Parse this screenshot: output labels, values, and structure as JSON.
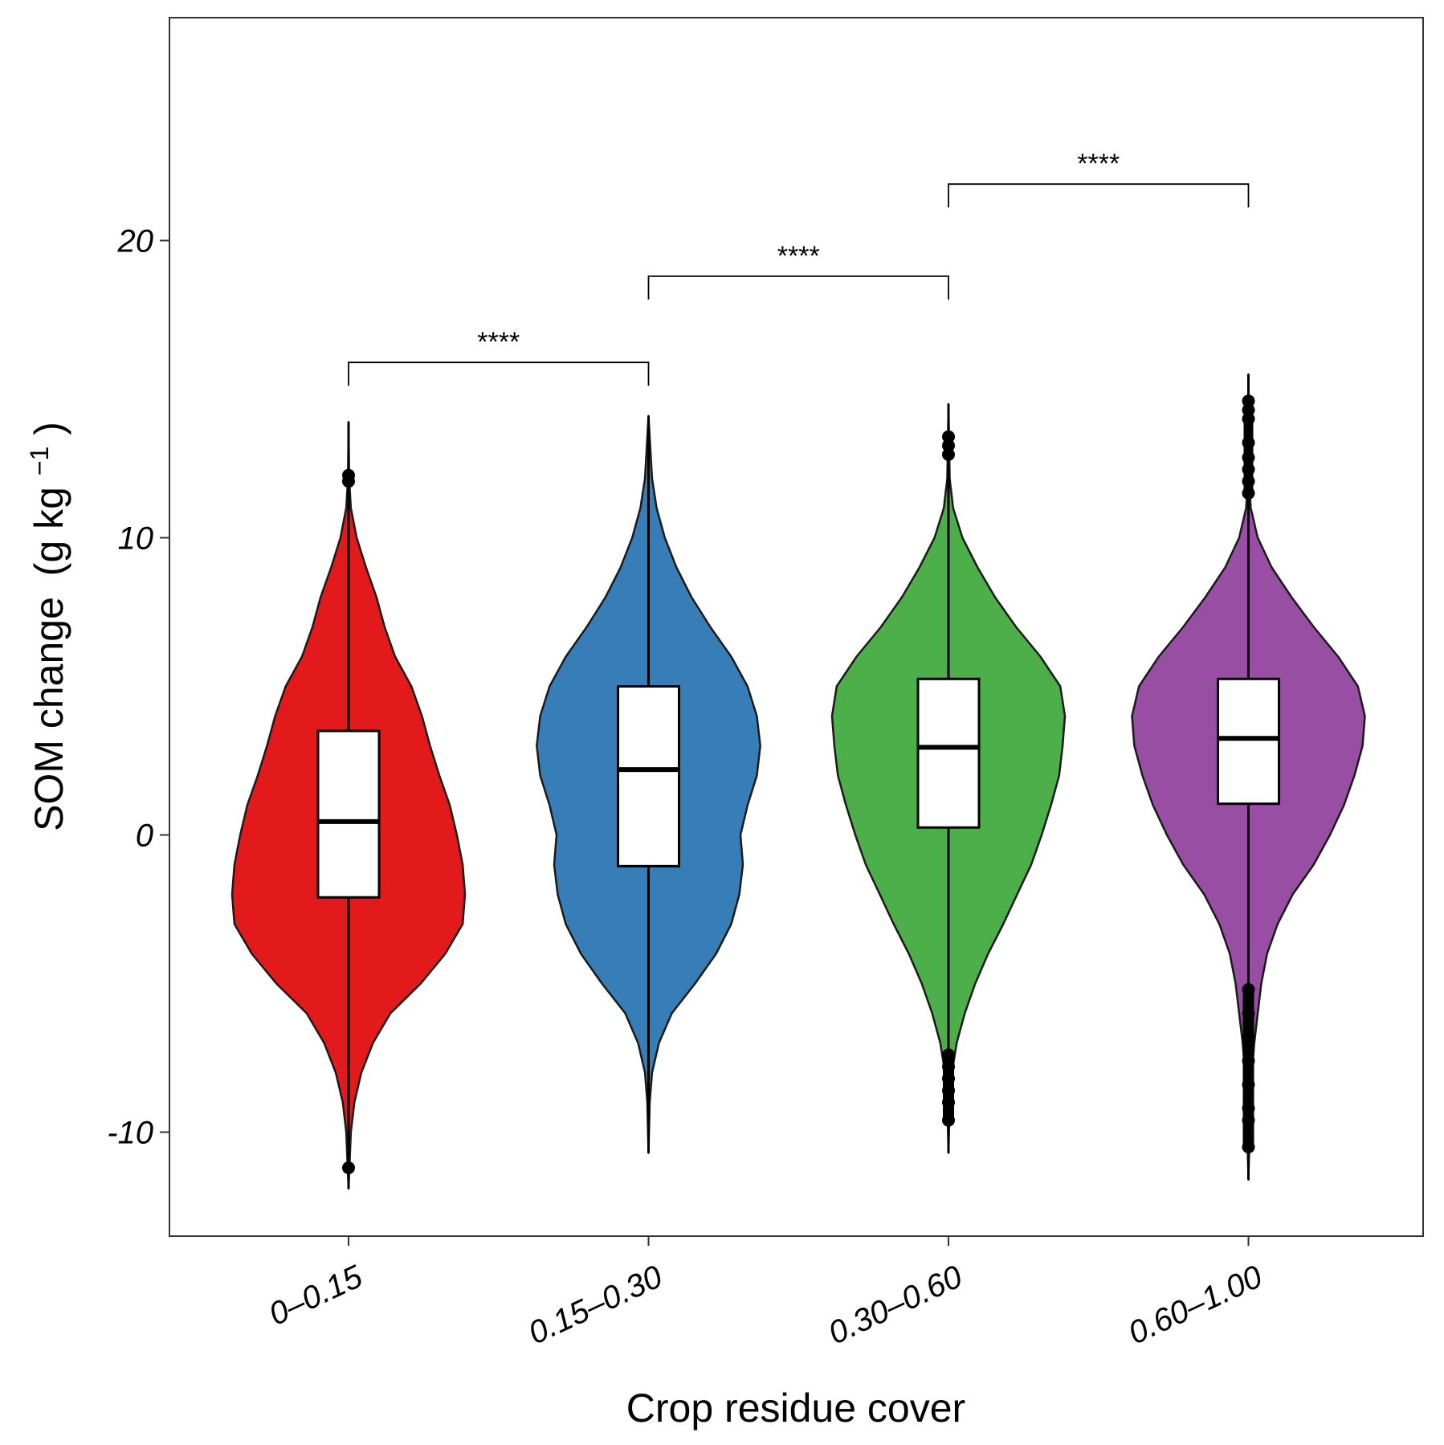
{
  "chart_data": {
    "type": "violin",
    "xlabel": "Crop residue cover",
    "ylabel_main": "SOM change",
    "ylabel_unit": "(g kg",
    "ylabel_unit_sup": "−1",
    "ylabel_unit_close": ")",
    "ylim": [
      -13.5,
      27.5
    ],
    "yticks": [
      -10,
      0,
      10,
      20
    ],
    "ytick_labels": [
      "-10",
      "0",
      "10",
      "20"
    ],
    "categories": [
      "0–0.15",
      "0.15–0.30",
      "0.30–0.60",
      "0.60–1.00"
    ],
    "colors": [
      "#e31a1c",
      "#377eb8",
      "#4daf4a",
      "#984ea3"
    ],
    "groups": [
      {
        "name": "0–0.15",
        "min": -11.9,
        "max": 13.9,
        "q1": -2.1,
        "median": 0.45,
        "q3": 3.5,
        "whisker_low": -9.6,
        "whisker_high": 11.6,
        "outliers": [
          11.9,
          12.1,
          -11.2
        ],
        "density": [
          [
            -11.9,
            0.0
          ],
          [
            -10,
            0.02
          ],
          [
            -9,
            0.05
          ],
          [
            -8,
            0.11
          ],
          [
            -7,
            0.21
          ],
          [
            -6,
            0.36
          ],
          [
            -5,
            0.62
          ],
          [
            -4,
            0.83
          ],
          [
            -3,
            0.98
          ],
          [
            -2,
            1.0
          ],
          [
            -1,
            0.98
          ],
          [
            0,
            0.93
          ],
          [
            1,
            0.87
          ],
          [
            2,
            0.78
          ],
          [
            3,
            0.7
          ],
          [
            4,
            0.63
          ],
          [
            5,
            0.54
          ],
          [
            6,
            0.4
          ],
          [
            7,
            0.31
          ],
          [
            8,
            0.24
          ],
          [
            9,
            0.15
          ],
          [
            10,
            0.07
          ],
          [
            11,
            0.02
          ],
          [
            12,
            0.005
          ],
          [
            13.9,
            0.0
          ]
        ]
      },
      {
        "name": "0.15–0.30",
        "min": -10.7,
        "max": 14.1,
        "q1": -1.05,
        "median": 2.2,
        "q3": 5.0,
        "whisker_low": -7.9,
        "whisker_high": 12.0,
        "outliers": [],
        "density": [
          [
            -10.7,
            0.0
          ],
          [
            -9,
            0.01
          ],
          [
            -8,
            0.03
          ],
          [
            -7,
            0.09
          ],
          [
            -6,
            0.2
          ],
          [
            -5,
            0.4
          ],
          [
            -4,
            0.58
          ],
          [
            -3,
            0.71
          ],
          [
            -2,
            0.78
          ],
          [
            -1,
            0.81
          ],
          [
            0,
            0.79
          ],
          [
            1,
            0.85
          ],
          [
            2,
            0.93
          ],
          [
            3,
            0.96
          ],
          [
            4,
            0.93
          ],
          [
            5,
            0.85
          ],
          [
            6,
            0.71
          ],
          [
            7,
            0.53
          ],
          [
            8,
            0.37
          ],
          [
            9,
            0.24
          ],
          [
            10,
            0.14
          ],
          [
            11,
            0.07
          ],
          [
            12,
            0.03
          ],
          [
            14.1,
            0.0
          ]
        ]
      },
      {
        "name": "0.30–0.60",
        "min": -10.7,
        "max": 14.5,
        "q1": 0.25,
        "median": 2.95,
        "q3": 5.25,
        "whisker_low": -7.2,
        "whisker_high": 11.3,
        "outliers": [
          13.1,
          13.4,
          12.8,
          -7.4,
          -7.8,
          -8.2,
          -8.6,
          -9.0,
          -9.6
        ],
        "density": [
          [
            -10.7,
            0.0
          ],
          [
            -9,
            0.01
          ],
          [
            -8,
            0.03
          ],
          [
            -7,
            0.07
          ],
          [
            -6,
            0.14
          ],
          [
            -5,
            0.23
          ],
          [
            -4,
            0.34
          ],
          [
            -3,
            0.47
          ],
          [
            -2,
            0.59
          ],
          [
            -1,
            0.71
          ],
          [
            0,
            0.8
          ],
          [
            1,
            0.88
          ],
          [
            2,
            0.95
          ],
          [
            3,
            0.98
          ],
          [
            4,
            1.0
          ],
          [
            5,
            0.96
          ],
          [
            6,
            0.79
          ],
          [
            7,
            0.58
          ],
          [
            8,
            0.4
          ],
          [
            9,
            0.25
          ],
          [
            10,
            0.12
          ],
          [
            11,
            0.04
          ],
          [
            12,
            0.01
          ],
          [
            14.5,
            0.0
          ]
        ]
      },
      {
        "name": "0.60–1.00",
        "min": -11.6,
        "max": 15.5,
        "q1": 1.05,
        "median": 3.25,
        "q3": 5.25,
        "whisker_low": -5.0,
        "whisker_high": 11.2,
        "outliers": [
          14.6,
          14.3,
          14.0,
          13.2,
          12.7,
          12.3,
          11.9,
          11.5,
          -5.2,
          -6.0,
          -6.8,
          -7.6,
          -8.4,
          -9.2,
          -9.6,
          -10.5
        ],
        "density": [
          [
            -11.6,
            0.0
          ],
          [
            -10,
            0.01
          ],
          [
            -9,
            0.02
          ],
          [
            -8,
            0.03
          ],
          [
            -7,
            0.05
          ],
          [
            -6,
            0.08
          ],
          [
            -5,
            0.11
          ],
          [
            -4,
            0.16
          ],
          [
            -3,
            0.25
          ],
          [
            -2,
            0.38
          ],
          [
            -1,
            0.56
          ],
          [
            0,
            0.7
          ],
          [
            1,
            0.82
          ],
          [
            2,
            0.91
          ],
          [
            3,
            0.98
          ],
          [
            4,
            1.0
          ],
          [
            5,
            0.94
          ],
          [
            6,
            0.77
          ],
          [
            7,
            0.56
          ],
          [
            8,
            0.37
          ],
          [
            9,
            0.2
          ],
          [
            10,
            0.08
          ],
          [
            11,
            0.02
          ],
          [
            12,
            0.005
          ],
          [
            15.5,
            0.0
          ]
        ]
      }
    ],
    "comparisons": [
      {
        "from": 0,
        "to": 1,
        "label": "****",
        "y": 15.9
      },
      {
        "from": 1,
        "to": 2,
        "label": "****",
        "y": 18.8
      },
      {
        "from": 2,
        "to": 3,
        "label": "****",
        "y": 21.9
      }
    ]
  }
}
